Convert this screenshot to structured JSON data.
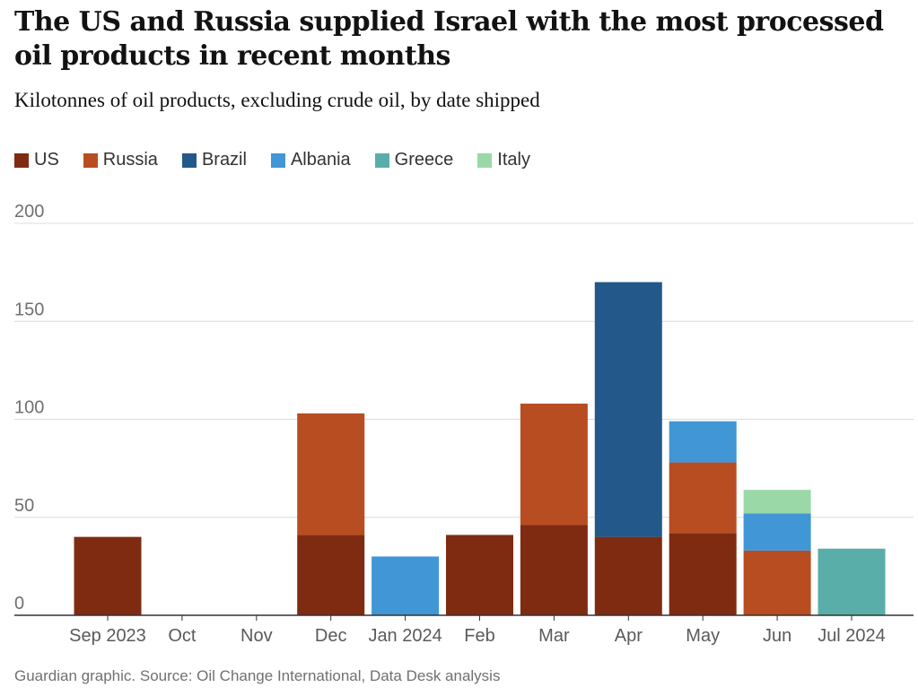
{
  "header": {
    "title": "The US and Russia supplied Israel with the most processed oil products in recent months",
    "subtitle": "Kilotonnes of oil products, excluding crude oil, by date shipped"
  },
  "footer": {
    "source": "Guardian graphic. Source: Oil Change International, Data Desk analysis"
  },
  "chart_data": {
    "type": "bar",
    "stacked": true,
    "title": "The US and Russia supplied Israel with the most processed oil products in recent months",
    "subtitle": "Kilotonnes of oil products, excluding crude oil, by date shipped",
    "xlabel": "",
    "ylabel": "",
    "ylim": [
      0,
      200
    ],
    "yticks": [
      0,
      50,
      100,
      150,
      200
    ],
    "grid": true,
    "legend_position": "top-left",
    "categories": [
      "Sep 2023",
      "Oct",
      "Nov",
      "Dec",
      "Jan 2024",
      "Feb",
      "Mar",
      "Apr",
      "May",
      "Jun",
      "Jul 2024"
    ],
    "series": [
      {
        "name": "US",
        "color": "#7f2b12",
        "values": [
          40,
          0,
          0,
          41,
          0,
          41,
          46,
          40,
          42,
          0,
          0
        ]
      },
      {
        "name": "Russia",
        "color": "#b84d22",
        "values": [
          0,
          0,
          0,
          62,
          0,
          0,
          62,
          0,
          36,
          33,
          0
        ]
      },
      {
        "name": "Brazil",
        "color": "#22588a",
        "values": [
          0,
          0,
          0,
          0,
          0,
          0,
          0,
          130,
          0,
          0,
          0
        ]
      },
      {
        "name": "Albania",
        "color": "#4196d6",
        "values": [
          0,
          0,
          0,
          0,
          30,
          0,
          0,
          0,
          21,
          19,
          0
        ]
      },
      {
        "name": "Greece",
        "color": "#5aaea9",
        "values": [
          0,
          0,
          0,
          0,
          0,
          0,
          0,
          0,
          0,
          0,
          34
        ]
      },
      {
        "name": "Italy",
        "color": "#9ad9a7",
        "values": [
          0,
          0,
          0,
          0,
          0,
          0,
          0,
          0,
          0,
          12,
          0
        ]
      }
    ]
  }
}
